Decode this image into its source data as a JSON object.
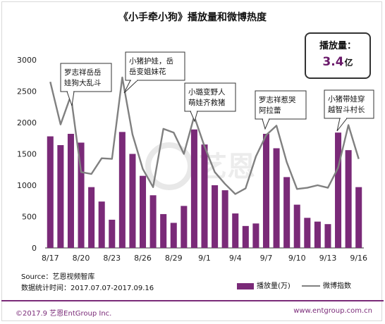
{
  "title": "《小手牵小狗》播放量和微博热度",
  "stat": {
    "label": "播放量：",
    "value": "3.4",
    "unit": "亿"
  },
  "source_line1": "Source：艺恩视频智库",
  "source_line2": "数据统计时间：2017.07.07-2017.09.16",
  "footer": {
    "left": "©2017.9 艺恩EntGroup Inc.",
    "right": "www.entgroup.com.cn"
  },
  "watermark": "艺恩",
  "colors": {
    "bar": "#7a2a78",
    "line": "#808080",
    "accent": "#6b1a6b"
  },
  "annotations": [
    {
      "text": "罗志祥岳岳娃狗大乱斗",
      "lines": [
        "罗志祥岳岳",
        "娃狗大乱斗"
      ]
    },
    {
      "text": "小猪护娃，岳岳变姐妹花",
      "lines": [
        "小猪护娃，岳",
        "岳变姐妹花"
      ]
    },
    {
      "text": "小璐变野人萌娃齐救猪",
      "lines": [
        "小璐变野人",
        "萌娃齐救猪"
      ]
    },
    {
      "text": "罗志祥惹哭阿拉蕾",
      "lines": [
        "罗志祥惹哭",
        "阿拉蕾"
      ]
    },
    {
      "text": "小猪带娃穿越智斗村长",
      "lines": [
        "小猪带娃穿",
        "越智斗村长"
      ]
    }
  ],
  "chart_data": {
    "type": "bar",
    "title": "《小手牵小狗》播放量和微博热度",
    "x": [
      "8/17",
      "8/18",
      "8/19",
      "8/20",
      "8/21",
      "8/22",
      "8/23",
      "8/24",
      "8/25",
      "8/26",
      "8/27",
      "8/28",
      "8/29",
      "8/30",
      "8/31",
      "9/1",
      "9/2",
      "9/3",
      "9/4",
      "9/5",
      "9/6",
      "9/7",
      "9/8",
      "9/9",
      "9/10",
      "9/11",
      "9/12",
      "9/13",
      "9/14",
      "9/15",
      "9/16"
    ],
    "tick_labels": [
      "8/17",
      "8/20",
      "8/23",
      "8/26",
      "8/29",
      "9/1",
      "9/4",
      "9/7",
      "9/10",
      "9/13",
      "9/16"
    ],
    "yticks": [
      0,
      500,
      1000,
      1500,
      2000,
      2500,
      3000
    ],
    "ylim": [
      0,
      3000
    ],
    "grid": false,
    "legend_position": "bottom-right",
    "series": [
      {
        "name": "播放量(万)",
        "type": "bar",
        "values": [
          1780,
          1640,
          1820,
          1680,
          970,
          740,
          450,
          1850,
          1500,
          1150,
          840,
          540,
          400,
          670,
          1890,
          1650,
          1000,
          920,
          550,
          350,
          390,
          1820,
          1590,
          1130,
          690,
          480,
          420,
          380,
          1840,
          1560,
          970
        ]
      },
      {
        "name": "微博指数",
        "type": "line",
        "values": [
          2650,
          1970,
          2430,
          1210,
          1180,
          1430,
          1420,
          2720,
          1810,
          1260,
          970,
          1900,
          1840,
          1500,
          2100,
          1620,
          1210,
          1020,
          860,
          950,
          1460,
          1800,
          1950,
          1370,
          940,
          960,
          1000,
          960,
          1280,
          1960,
          1420
        ]
      }
    ]
  }
}
